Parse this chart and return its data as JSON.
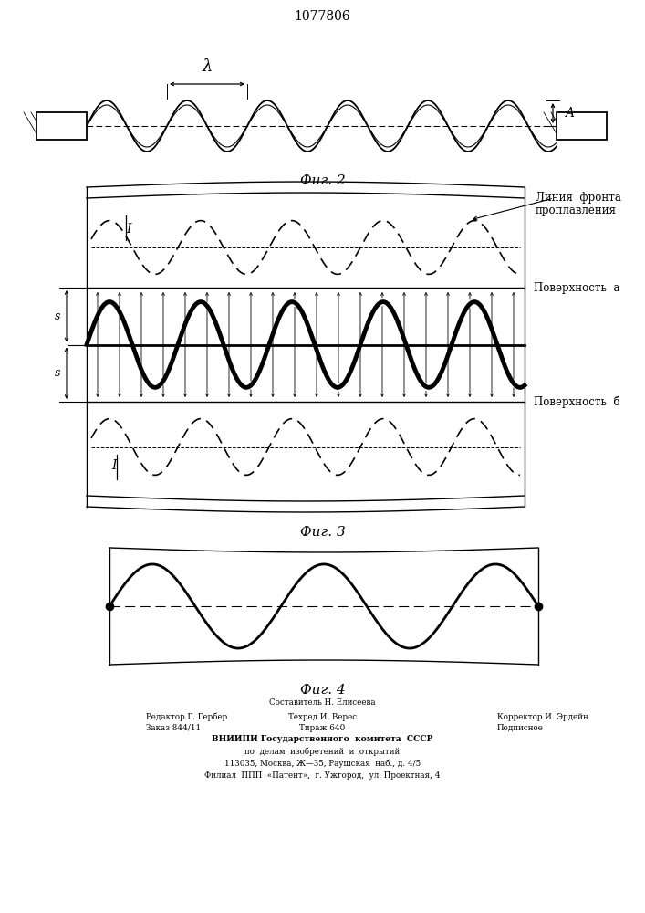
{
  "title": "1077806",
  "fig2_caption": "Фиг. 2",
  "fig3_caption": "Фиг. 3",
  "fig4_caption": "Фиг. 4",
  "lambda_label": "λ",
  "A_label": "A",
  "surf_a_label": "Поверхность  a",
  "surf_b_label": "Поверхность  б",
  "front_label_line1": "Линия  фронта",
  "front_label_line2": "проплавления",
  "I_label": "I",
  "s_label": "s",
  "footer_line1": "Составитель Н. Елисеева",
  "footer_line2_left": "Редактор Г. Гербер",
  "footer_line2_mid": "Техред И. Верес",
  "footer_line2_right": "Корректор И. Эрдейн",
  "footer_line3_left": "Заказ 844/11",
  "footer_line3_mid": "Тираж 640",
  "footer_line3_right": "Подписное",
  "footer_vniip": "ВНИИПИ Государственного  комитета  СССР",
  "footer_po": "по  делам  изобретений  и  открытий",
  "footer_addr1": "113035, Москва, Ж—35, Раушская  наб., д. 4/5",
  "footer_filial": "Филиал  ППП  «Патент»,  г. Ужгород,  ул. Проектная, 4",
  "bg_color": "#ffffff"
}
